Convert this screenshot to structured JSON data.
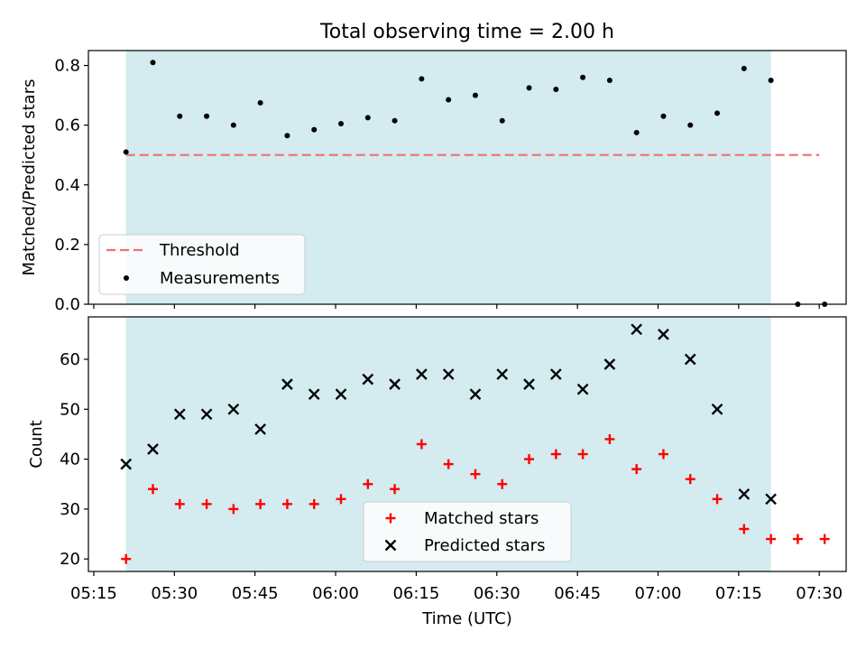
{
  "chart_data": [
    {
      "type": "scatter",
      "title": "Total observing time = 2.00 h",
      "xlabel": "",
      "ylabel": "Matched/Predicted stars",
      "ylim": [
        0.0,
        0.85
      ],
      "yticks": [
        "0.0",
        "0.2",
        "0.4",
        "0.6",
        "0.8"
      ],
      "shaded_interval": {
        "start": "05:21",
        "end": "07:21",
        "color": "#d4ebf0"
      },
      "threshold": {
        "name": "Threshold",
        "value": 0.5,
        "from": "05:21",
        "to": "07:30",
        "color": "#f07070"
      },
      "series": [
        {
          "name": "Measurements",
          "marker": "dot",
          "color": "#000000",
          "x": [
            "05:21",
            "05:26",
            "05:31",
            "05:36",
            "05:41",
            "05:46",
            "05:51",
            "05:56",
            "06:01",
            "06:06",
            "06:11",
            "06:16",
            "06:21",
            "06:26",
            "06:31",
            "06:36",
            "06:41",
            "06:46",
            "06:51",
            "06:56",
            "07:01",
            "07:06",
            "07:11",
            "07:16",
            "07:21",
            "07:26",
            "07:31"
          ],
          "y": [
            0.51,
            0.81,
            0.63,
            0.63,
            0.6,
            0.675,
            0.565,
            0.585,
            0.605,
            0.625,
            0.615,
            0.755,
            0.685,
            0.7,
            0.615,
            0.725,
            0.72,
            0.76,
            0.75,
            0.575,
            0.63,
            0.6,
            0.64,
            0.79,
            0.75,
            0.0,
            0.0
          ]
        }
      ],
      "legend": {
        "position": "lower-left",
        "entries": [
          "Threshold",
          "Measurements"
        ]
      }
    },
    {
      "type": "scatter",
      "title": "",
      "xlabel": "Time (UTC)",
      "ylabel": "Count",
      "xlim": [
        "05:14",
        "07:35"
      ],
      "ylim": [
        17.5,
        68.5
      ],
      "xticks": [
        "05:15",
        "05:30",
        "05:45",
        "06:00",
        "06:15",
        "06:30",
        "06:45",
        "07:00",
        "07:15",
        "07:30"
      ],
      "yticks": [
        "20",
        "30",
        "40",
        "50",
        "60"
      ],
      "shaded_interval": {
        "start": "05:21",
        "end": "07:21",
        "color": "#d4ebf0"
      },
      "series": [
        {
          "name": "Matched stars",
          "marker": "plus",
          "color": "#ff0000",
          "x": [
            "05:21",
            "05:26",
            "05:31",
            "05:36",
            "05:41",
            "05:46",
            "05:51",
            "05:56",
            "06:01",
            "06:06",
            "06:11",
            "06:16",
            "06:21",
            "06:26",
            "06:31",
            "06:36",
            "06:41",
            "06:46",
            "06:51",
            "06:56",
            "07:01",
            "07:06",
            "07:11",
            "07:16",
            "07:21",
            "07:26",
            "07:31"
          ],
          "y": [
            20,
            34,
            31,
            31,
            30,
            31,
            31,
            31,
            32,
            35,
            34,
            43,
            39,
            37,
            35,
            40,
            41,
            41,
            44,
            38,
            41,
            36,
            32,
            26,
            24,
            24,
            24
          ]
        },
        {
          "name": "Predicted stars",
          "marker": "x",
          "color": "#000000",
          "x": [
            "05:21",
            "05:26",
            "05:31",
            "05:36",
            "05:41",
            "05:46",
            "05:51",
            "05:56",
            "06:01",
            "06:06",
            "06:11",
            "06:16",
            "06:21",
            "06:26",
            "06:31",
            "06:36",
            "06:41",
            "06:46",
            "06:51",
            "06:56",
            "07:01",
            "07:06",
            "07:11",
            "07:16",
            "07:21"
          ],
          "y": [
            39,
            42,
            49,
            49,
            50,
            46,
            55,
            53,
            53,
            56,
            55,
            57,
            57,
            53,
            57,
            55,
            57,
            54,
            59,
            66,
            65,
            60,
            50,
            33,
            32
          ]
        }
      ],
      "legend": {
        "position": "lower-center",
        "entries": [
          "Matched stars",
          "Predicted stars"
        ]
      }
    }
  ]
}
